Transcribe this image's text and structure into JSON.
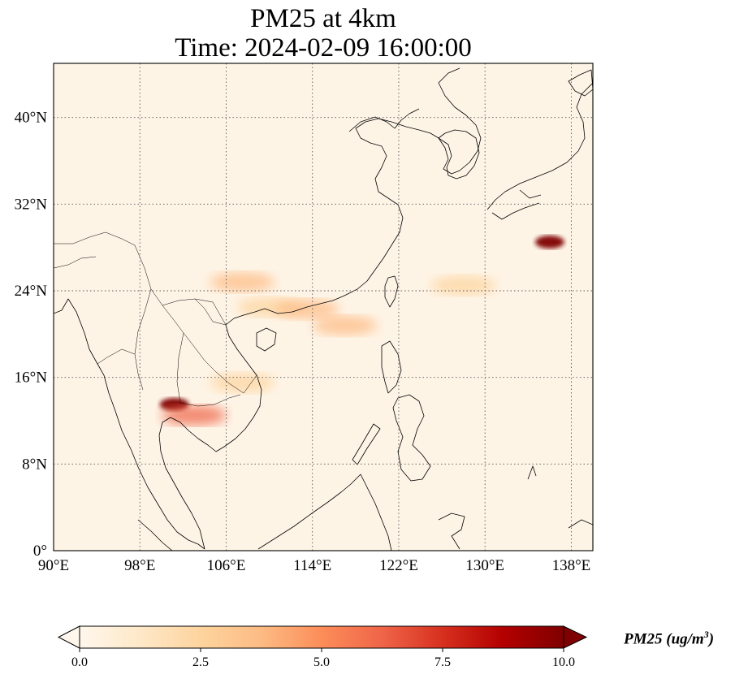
{
  "title_line1": "PM25 at 4km",
  "title_line2": "Time: 2024-02-09 16:00:00",
  "map": {
    "lon_range": [
      90,
      140
    ],
    "lat_range": [
      0,
      45
    ],
    "lon_ticks": [
      {
        "value": 90,
        "label": "90°E"
      },
      {
        "value": 98,
        "label": "98°E"
      },
      {
        "value": 106,
        "label": "106°E"
      },
      {
        "value": 114,
        "label": "114°E"
      },
      {
        "value": 122,
        "label": "122°E"
      },
      {
        "value": 130,
        "label": "130°E"
      },
      {
        "value": 138,
        "label": "138°E"
      }
    ],
    "lat_ticks": [
      {
        "value": 0,
        "label": "0°"
      },
      {
        "value": 8,
        "label": "8°N"
      },
      {
        "value": 16,
        "label": "16°N"
      },
      {
        "value": 24,
        "label": "24°N"
      },
      {
        "value": 32,
        "label": "32°N"
      },
      {
        "value": 40,
        "label": "40°N"
      }
    ],
    "gridlines": "dotted",
    "background_color": "#fef4e6",
    "coastline_color": "#000000"
  },
  "colorbar": {
    "colormap": "OrRd",
    "colors": [
      "#fff7ec",
      "#fee8c8",
      "#fdd49e",
      "#fdbb84",
      "#fc8d59",
      "#ef6548",
      "#d7301f",
      "#b30000",
      "#7f0000"
    ],
    "range": [
      0,
      10
    ],
    "ticks": [
      {
        "value": 0,
        "label": "0.0"
      },
      {
        "value": 2.5,
        "label": "2.5"
      },
      {
        "value": 5,
        "label": "5.0"
      },
      {
        "value": 7.5,
        "label": "7.5"
      },
      {
        "value": 10,
        "label": "10.0"
      }
    ],
    "label": "PM25 (ug/m",
    "label_exponent": "3",
    "label_close": ")",
    "extend": "both"
  },
  "plumes": [
    {
      "name": "southern-china-band",
      "lon": 110,
      "lat": 22.5,
      "value": 3.0
    },
    {
      "name": "guangxi-patch",
      "lon": 107.5,
      "lat": 24.8,
      "value": 4.0
    },
    {
      "name": "pearl-river-delta",
      "lon": 113.5,
      "lat": 22.3,
      "value": 3.8
    },
    {
      "name": "taiwan-strait-outflow",
      "lon": 117,
      "lat": 20.8,
      "value": 3.2
    },
    {
      "name": "thailand-hotspot",
      "lon": 101.2,
      "lat": 13.5,
      "value": 10.0
    },
    {
      "name": "cambodia-patch",
      "lon": 103,
      "lat": 12.5,
      "value": 6.0
    },
    {
      "name": "laos-vietnam-patch",
      "lon": 107.5,
      "lat": 15.5,
      "value": 3.0
    },
    {
      "name": "east-of-japan-plume",
      "lon": 136,
      "lat": 28.5,
      "value": 9.5
    },
    {
      "name": "pacific-outflow-band",
      "lon": 128,
      "lat": 24.5,
      "value": 2.0
    }
  ]
}
